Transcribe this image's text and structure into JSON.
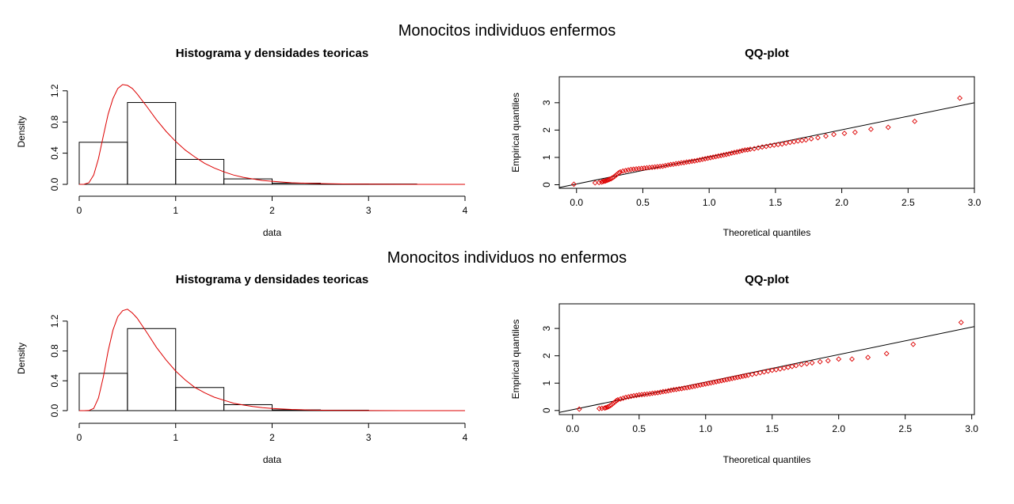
{
  "colors": {
    "density_curve": "#dd0000",
    "qq_points": "#dd0000",
    "axes": "#000000",
    "background": "#ffffff"
  },
  "row_titles": [
    "Monocitos individuos enfermos",
    "Monocitos individuos no enfermos"
  ],
  "chart_data": [
    {
      "type": "histogram",
      "title": "Histograma y densidades teoricas",
      "xlabel": "data",
      "ylabel": "Density",
      "xlim": [
        0,
        4
      ],
      "ylim": [
        0,
        1.35
      ],
      "xticks": [
        0,
        1,
        2,
        3,
        4
      ],
      "yticks": [
        0.0,
        0.4,
        0.8,
        1.2
      ],
      "bins": [
        {
          "x0": 0.0,
          "x1": 0.5,
          "density": 0.54
        },
        {
          "x0": 0.5,
          "x1": 1.0,
          "density": 1.05
        },
        {
          "x0": 1.0,
          "x1": 1.5,
          "density": 0.32
        },
        {
          "x0": 1.5,
          "x1": 2.0,
          "density": 0.07
        },
        {
          "x0": 2.0,
          "x1": 2.5,
          "density": 0.015
        },
        {
          "x0": 2.5,
          "x1": 3.0,
          "density": 0.005
        },
        {
          "x0": 3.0,
          "x1": 3.5,
          "density": 0.004
        }
      ],
      "density_curve": {
        "x": [
          0,
          0.05,
          0.1,
          0.15,
          0.2,
          0.25,
          0.3,
          0.35,
          0.4,
          0.45,
          0.5,
          0.55,
          0.6,
          0.7,
          0.8,
          0.9,
          1.0,
          1.1,
          1.2,
          1.3,
          1.4,
          1.5,
          1.6,
          1.7,
          1.8,
          1.9,
          2.0,
          2.2,
          2.4,
          2.6,
          2.8,
          3.0,
          3.5,
          4.0
        ],
        "y": [
          0,
          0.001,
          0.02,
          0.12,
          0.33,
          0.62,
          0.9,
          1.1,
          1.23,
          1.28,
          1.27,
          1.23,
          1.16,
          1.0,
          0.83,
          0.68,
          0.55,
          0.44,
          0.35,
          0.27,
          0.21,
          0.16,
          0.12,
          0.09,
          0.07,
          0.05,
          0.04,
          0.02,
          0.012,
          0.007,
          0.004,
          0.002,
          0.0005,
          0.0001
        ]
      }
    },
    {
      "type": "scatter",
      "title": "QQ-plot",
      "xlabel": "Theoretical quantiles",
      "ylabel": "Empirical quantiles",
      "xlim": [
        -0.13,
        3.0
      ],
      "ylim": [
        -0.13,
        3.95
      ],
      "xticks": [
        "0.0",
        "0.5",
        "1.0",
        "1.5",
        "2.0",
        "2.5",
        "3.0"
      ],
      "yticks": [
        "0",
        "1",
        "2",
        "3"
      ],
      "reference_line": {
        "x": [
          -0.13,
          3.0
        ],
        "y": [
          -0.1,
          3.0
        ]
      },
      "points": {
        "x": [
          -0.02,
          0.14,
          0.17,
          0.19,
          0.2,
          0.21,
          0.22,
          0.23,
          0.24,
          0.25,
          0.26,
          0.27,
          0.28,
          0.29,
          0.3,
          0.31,
          0.32,
          0.33,
          0.35,
          0.37,
          0.39,
          0.41,
          0.43,
          0.45,
          0.47,
          0.49,
          0.51,
          0.53,
          0.55,
          0.57,
          0.59,
          0.61,
          0.63,
          0.65,
          0.67,
          0.69,
          0.71,
          0.73,
          0.75,
          0.77,
          0.79,
          0.81,
          0.83,
          0.85,
          0.87,
          0.89,
          0.91,
          0.93,
          0.95,
          0.97,
          0.99,
          1.01,
          1.03,
          1.05,
          1.07,
          1.09,
          1.11,
          1.13,
          1.15,
          1.17,
          1.19,
          1.21,
          1.23,
          1.25,
          1.27,
          1.29,
          1.31,
          1.34,
          1.37,
          1.4,
          1.43,
          1.46,
          1.49,
          1.52,
          1.55,
          1.58,
          1.61,
          1.64,
          1.67,
          1.7,
          1.73,
          1.77,
          1.82,
          1.88,
          1.94,
          2.02,
          2.1,
          2.22,
          2.35,
          2.55,
          2.89
        ],
        "y": [
          0.02,
          0.07,
          0.08,
          0.1,
          0.12,
          0.13,
          0.14,
          0.16,
          0.18,
          0.2,
          0.22,
          0.25,
          0.28,
          0.32,
          0.36,
          0.4,
          0.44,
          0.47,
          0.5,
          0.52,
          0.54,
          0.56,
          0.57,
          0.58,
          0.59,
          0.6,
          0.61,
          0.62,
          0.63,
          0.64,
          0.65,
          0.66,
          0.67,
          0.68,
          0.7,
          0.72,
          0.74,
          0.75,
          0.77,
          0.78,
          0.8,
          0.81,
          0.83,
          0.84,
          0.86,
          0.87,
          0.89,
          0.91,
          0.93,
          0.95,
          0.97,
          0.99,
          1.01,
          1.03,
          1.05,
          1.07,
          1.09,
          1.11,
          1.13,
          1.16,
          1.18,
          1.2,
          1.22,
          1.25,
          1.27,
          1.28,
          1.3,
          1.32,
          1.35,
          1.38,
          1.4,
          1.43,
          1.45,
          1.47,
          1.49,
          1.52,
          1.55,
          1.57,
          1.6,
          1.62,
          1.64,
          1.68,
          1.72,
          1.78,
          1.84,
          1.88,
          1.92,
          2.03,
          2.1,
          2.32,
          3.17
        ]
      }
    },
    {
      "type": "histogram",
      "title": "Histograma y densidades teoricas",
      "xlabel": "data",
      "ylabel": "Density",
      "xlim": [
        0,
        4
      ],
      "ylim": [
        0,
        1.4
      ],
      "xticks": [
        0,
        1,
        2,
        3,
        4
      ],
      "yticks": [
        0.0,
        0.4,
        0.8,
        1.2
      ],
      "bins": [
        {
          "x0": 0.0,
          "x1": 0.5,
          "density": 0.5
        },
        {
          "x0": 0.5,
          "x1": 1.0,
          "density": 1.1
        },
        {
          "x0": 1.0,
          "x1": 1.5,
          "density": 0.31
        },
        {
          "x0": 1.5,
          "x1": 2.0,
          "density": 0.08
        },
        {
          "x0": 2.0,
          "x1": 2.5,
          "density": 0.01
        },
        {
          "x0": 2.5,
          "x1": 3.0,
          "density": 0.006
        }
      ],
      "density_curve": {
        "x": [
          0,
          0.05,
          0.1,
          0.15,
          0.2,
          0.25,
          0.3,
          0.35,
          0.4,
          0.45,
          0.5,
          0.55,
          0.6,
          0.7,
          0.8,
          0.9,
          1.0,
          1.1,
          1.2,
          1.3,
          1.4,
          1.5,
          1.6,
          1.7,
          1.8,
          1.9,
          2.0,
          2.2,
          2.4,
          2.6,
          2.8,
          3.0,
          3.5,
          4.0
        ],
        "y": [
          0,
          0.0,
          0.002,
          0.03,
          0.17,
          0.45,
          0.8,
          1.08,
          1.26,
          1.34,
          1.36,
          1.31,
          1.24,
          1.05,
          0.85,
          0.68,
          0.53,
          0.41,
          0.31,
          0.24,
          0.18,
          0.14,
          0.1,
          0.075,
          0.055,
          0.04,
          0.03,
          0.016,
          0.008,
          0.004,
          0.002,
          0.001,
          0.0002,
          0.0
        ]
      }
    },
    {
      "type": "scatter",
      "title": "QQ-plot",
      "xlabel": "Theoretical quantiles",
      "ylabel": "Empirical quantiles",
      "xlim": [
        -0.1,
        3.02
      ],
      "ylim": [
        -0.15,
        3.9
      ],
      "xticks": [
        "0.0",
        "0.5",
        "1.0",
        "1.5",
        "2.0",
        "2.5",
        "3.0"
      ],
      "yticks": [
        "0",
        "1",
        "2",
        "3"
      ],
      "reference_line": {
        "x": [
          -0.1,
          3.02
        ],
        "y": [
          -0.07,
          3.07
        ]
      },
      "points": {
        "x": [
          0.05,
          0.2,
          0.22,
          0.24,
          0.25,
          0.26,
          0.27,
          0.28,
          0.29,
          0.3,
          0.31,
          0.32,
          0.33,
          0.34,
          0.36,
          0.38,
          0.4,
          0.42,
          0.44,
          0.46,
          0.48,
          0.5,
          0.52,
          0.54,
          0.56,
          0.58,
          0.6,
          0.62,
          0.64,
          0.66,
          0.68,
          0.7,
          0.72,
          0.74,
          0.76,
          0.78,
          0.8,
          0.82,
          0.84,
          0.86,
          0.88,
          0.9,
          0.92,
          0.94,
          0.96,
          0.98,
          1.0,
          1.02,
          1.04,
          1.06,
          1.08,
          1.1,
          1.12,
          1.14,
          1.16,
          1.18,
          1.2,
          1.22,
          1.24,
          1.26,
          1.28,
          1.3,
          1.32,
          1.35,
          1.38,
          1.41,
          1.44,
          1.47,
          1.5,
          1.53,
          1.56,
          1.59,
          1.62,
          1.65,
          1.68,
          1.72,
          1.76,
          1.8,
          1.86,
          1.92,
          2.0,
          2.1,
          2.22,
          2.36,
          2.56,
          2.92
        ],
        "y": [
          0.05,
          0.07,
          0.08,
          0.09,
          0.1,
          0.12,
          0.14,
          0.17,
          0.2,
          0.24,
          0.28,
          0.32,
          0.36,
          0.39,
          0.42,
          0.45,
          0.48,
          0.5,
          0.52,
          0.54,
          0.55,
          0.57,
          0.58,
          0.59,
          0.6,
          0.61,
          0.63,
          0.64,
          0.65,
          0.67,
          0.69,
          0.7,
          0.72,
          0.74,
          0.76,
          0.77,
          0.79,
          0.8,
          0.82,
          0.83,
          0.85,
          0.87,
          0.89,
          0.91,
          0.93,
          0.95,
          0.97,
          0.99,
          1.01,
          1.03,
          1.05,
          1.07,
          1.09,
          1.11,
          1.13,
          1.15,
          1.17,
          1.19,
          1.21,
          1.23,
          1.25,
          1.27,
          1.29,
          1.32,
          1.35,
          1.38,
          1.41,
          1.44,
          1.47,
          1.49,
          1.52,
          1.55,
          1.58,
          1.61,
          1.64,
          1.68,
          1.71,
          1.74,
          1.78,
          1.82,
          1.88,
          1.88,
          1.94,
          2.08,
          2.42,
          3.22
        ]
      }
    }
  ]
}
